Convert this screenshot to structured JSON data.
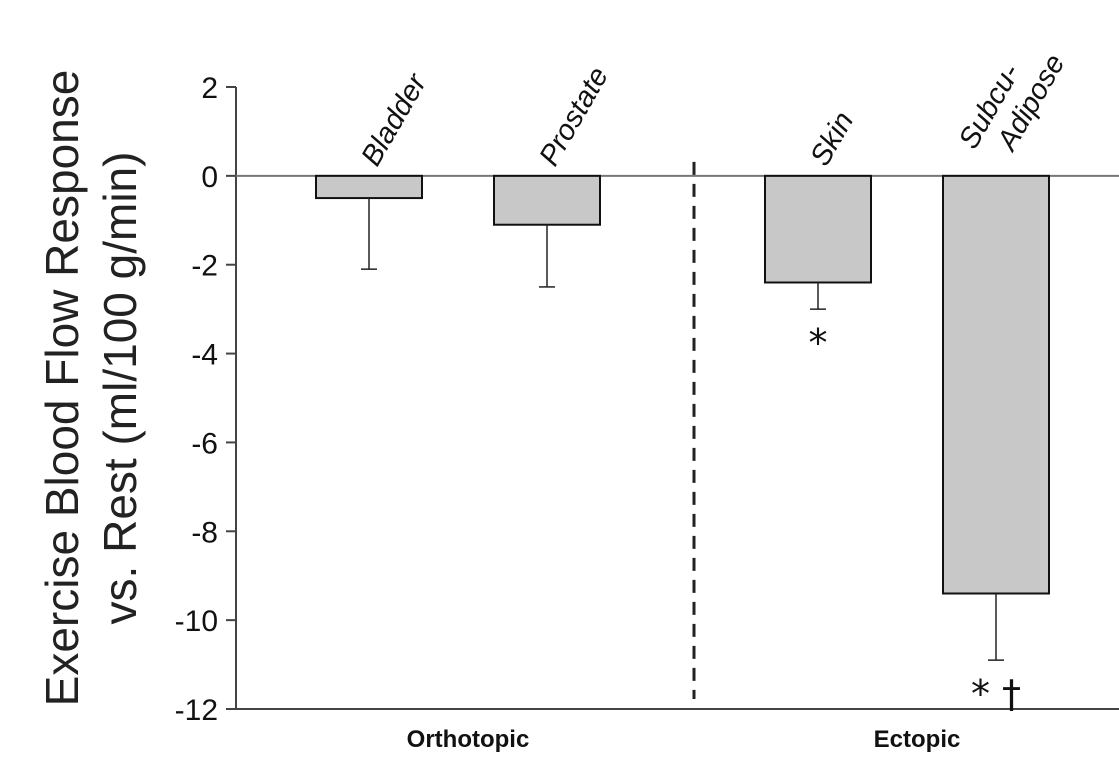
{
  "chart_data": {
    "type": "bar",
    "ylabel_line1": "Exercise Blood Flow Response",
    "ylabel_line2": "vs. Rest (ml/100 g/min)",
    "ylim": [
      -12,
      2
    ],
    "yticks": [
      "2",
      "0",
      "-2",
      "-4",
      "-6",
      "-8",
      "-10",
      "-12"
    ],
    "ytick_values": [
      2,
      0,
      -2,
      -4,
      -6,
      -8,
      -10,
      -12
    ],
    "categories": [
      "Bladder",
      "Prostate",
      "Skin",
      "Subcu-\nAdipose"
    ],
    "category_lines": [
      [
        "Bladder"
      ],
      [
        "Prostate"
      ],
      [
        "Skin"
      ],
      [
        "Subcu-",
        "Adipose"
      ]
    ],
    "values": [
      -0.5,
      -1.1,
      -2.4,
      -9.4
    ],
    "error_lower": [
      -2.1,
      -2.5,
      -3.0,
      -10.9
    ],
    "significance": [
      "",
      "",
      "*",
      "* †"
    ],
    "groups": [
      "Orthotopic",
      "Ectopic"
    ],
    "group_members": [
      [
        0,
        1
      ],
      [
        2,
        3
      ]
    ],
    "divider": "dashed line between Prostate and Skin",
    "colors": {
      "bar_fill": "#c8c8c8",
      "bar_stroke": "#111111",
      "axis": "#444444",
      "zero_line": "#777777"
    }
  }
}
